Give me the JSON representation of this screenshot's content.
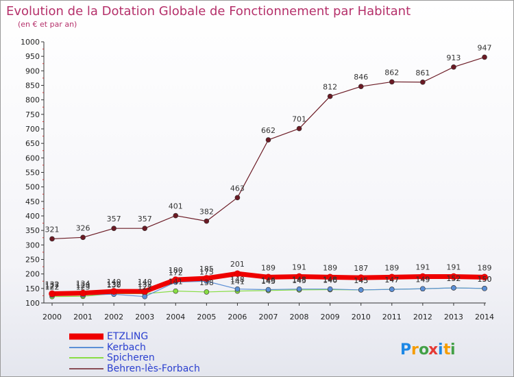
{
  "chart_data": {
    "type": "line",
    "title": "Evolution de la Dotation Globale de Fonctionnement par Habitant",
    "subtitle": "(en € et par an)",
    "x": [
      "2000",
      "2001",
      "2002",
      "2003",
      "2004",
      "2005",
      "2006",
      "2007",
      "2008",
      "2009",
      "2010",
      "2011",
      "2012",
      "2013",
      "2014"
    ],
    "ylim": [
      100,
      1000
    ],
    "yticks": [
      100,
      150,
      200,
      250,
      300,
      350,
      400,
      450,
      500,
      550,
      600,
      650,
      700,
      750,
      800,
      850,
      900,
      950,
      1000
    ],
    "series": [
      {
        "name": "ETZLING",
        "color": "#ee0000",
        "values": [
          132,
          134,
          140,
          140,
          180,
          185,
          201,
          189,
          191,
          189,
          187,
          189,
          191,
          191,
          189
        ]
      },
      {
        "name": "Kerbach",
        "color": "#5b8fd6",
        "values": [
          127,
          128,
          130,
          122,
          172,
          175,
          148,
          146,
          148,
          148,
          145,
          147,
          149,
          152,
          150
        ]
      },
      {
        "name": "Spicheren",
        "color": "#88dd44",
        "values": [
          122,
          123,
          132,
          132,
          141,
          138,
          141,
          143,
          145,
          146,
          145,
          147,
          149,
          152,
          150
        ]
      },
      {
        "name": "Behren-lès-Forbach",
        "color": "#6b1a24",
        "values": [
          321,
          326,
          357,
          357,
          401,
          382,
          463,
          662,
          701,
          812,
          846,
          862,
          861,
          913,
          947
        ]
      }
    ]
  },
  "logo": {
    "text": "Proxiti",
    "letters": [
      "P",
      "r",
      "o",
      "x",
      "i",
      "t",
      "i"
    ],
    "colors": [
      "#1e88e5",
      "#f59c00",
      "#43a047",
      "#e53935",
      "#1e88e5",
      "#f59c00",
      "#43a047"
    ]
  }
}
